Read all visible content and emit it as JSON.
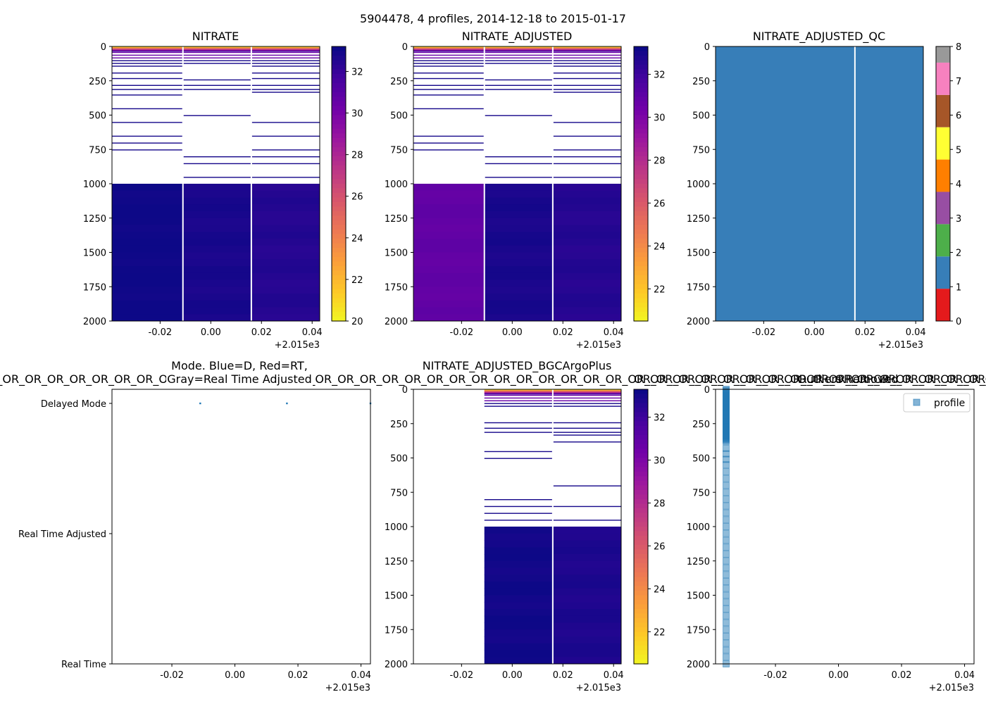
{
  "figure": {
    "suptitle": "5904478, 4 profiles, 2014-12-18 to 2015-01-17",
    "x_offset_label": "+2.015e3",
    "x_ticks": [
      "-0.02",
      "0.00",
      "0.02",
      "0.04"
    ]
  },
  "colors": {
    "plasma": [
      "#0d0887",
      "#46039f",
      "#7201a8",
      "#9c179e",
      "#bd3786",
      "#d8576b",
      "#ed7953",
      "#fb9f3a",
      "#fdca26",
      "#f0f921"
    ],
    "qc": [
      "#e41a1c",
      "#377eb8",
      "#4daf4a",
      "#984ea3",
      "#ff7f00",
      "#ffff33",
      "#a65628",
      "#f781bf",
      "#999999"
    ],
    "point_blue": "#1f77b4",
    "profile_marker": "#1f77b4"
  },
  "chart_data": [
    {
      "id": "nitrate",
      "type": "heatmap",
      "title": "NITRATE",
      "xlim": [
        2014.961,
        2015.043
      ],
      "ylim": [
        2000,
        0
      ],
      "y_ticks": [
        "0",
        "250",
        "500",
        "750",
        "1000",
        "1250",
        "1500",
        "1750",
        "2000"
      ],
      "profile_times": [
        2014.961,
        2014.989,
        2015.016,
        2015.043
      ],
      "deep_values": [
        33.2,
        32.9,
        32.6
      ],
      "shallow_line_depths": [
        [
          40,
          60,
          80,
          100,
          120,
          140,
          190,
          230,
          280,
          310,
          350,
          450,
          550,
          650,
          700,
          750
        ],
        [
          40,
          60,
          80,
          100,
          120,
          240,
          280,
          310,
          500,
          800,
          850,
          950
        ],
        [
          40,
          60,
          80,
          100,
          120,
          140,
          190,
          230,
          280,
          310,
          330,
          550,
          650,
          750,
          800,
          850,
          950
        ]
      ],
      "colorbar": {
        "min": 20,
        "max": 33.2,
        "ticks": [
          "20",
          "22",
          "24",
          "26",
          "28",
          "30",
          "32"
        ]
      }
    },
    {
      "id": "nitrate_adjusted",
      "type": "heatmap",
      "title": "NITRATE_ADJUSTED",
      "xlim": [
        2014.961,
        2015.043
      ],
      "ylim": [
        2000,
        0
      ],
      "y_ticks": [
        "0",
        "250",
        "500",
        "750",
        "1000",
        "1250",
        "1500",
        "1750",
        "2000"
      ],
      "profile_times": [
        2014.961,
        2014.989,
        2015.016,
        2015.043
      ],
      "deep_values": [
        31.0,
        33.0,
        32.7
      ],
      "shallow_line_depths": [
        [
          40,
          60,
          80,
          100,
          120,
          140,
          190,
          230,
          280,
          310,
          350,
          450,
          650,
          700,
          750
        ],
        [
          40,
          60,
          80,
          100,
          120,
          240,
          280,
          310,
          500,
          800,
          850,
          950
        ],
        [
          40,
          60,
          80,
          100,
          120,
          140,
          190,
          230,
          280,
          310,
          330,
          550,
          650,
          750,
          800,
          850,
          950
        ]
      ],
      "colorbar": {
        "min": 20.5,
        "max": 33.3,
        "ticks": [
          "22",
          "24",
          "26",
          "28",
          "30",
          "32"
        ]
      }
    },
    {
      "id": "nitrate_adjusted_qc",
      "type": "heatmap",
      "title": "NITRATE_ADJUSTED_QC",
      "xlim": [
        2014.961,
        2015.043
      ],
      "ylim": [
        2000,
        0
      ],
      "y_ticks": [
        "0",
        "250",
        "500",
        "750",
        "1000",
        "1250",
        "1500",
        "1750",
        "2000"
      ],
      "qc_value": 1,
      "gap_time": 2015.016,
      "colorbar": {
        "min": 0,
        "max": 8,
        "ticks": [
          "0",
          "1",
          "2",
          "3",
          "4",
          "5",
          "6",
          "7",
          "8"
        ]
      }
    },
    {
      "id": "mode",
      "type": "scatter",
      "title_line1": "Mode. Blue=D, Red=RT,",
      "title_line2": "Gray=Real Time Adjusted",
      "title_overlap": "OR_OR_OR_OR_OR_OR_OR_OR_OR_OR_OR_OR_OR_OR_OR_OR_OR_OR_OR_OR_OR_OR_OR_OR_OR_OR_OR_OR_OR_OR_OR_OR_OR_OR_OR_OR_OR_OR_OR_OR_OR_OR_OR_OR_OR_OR_OR_OR_OR_OR_OR_OR_OR_OR_OR_OR_OR_OR_OR_OR",
      "xlim": [
        2014.961,
        2015.043
      ],
      "y_categories": [
        "Delayed Mode",
        "Real Time Adjusted",
        "Real Time"
      ],
      "points": [
        {
          "x": 2014.989,
          "y": "Delayed Mode"
        },
        {
          "x": 2015.0165,
          "y": "Delayed Mode"
        },
        {
          "x": 2015.043,
          "y": "Delayed Mode"
        }
      ]
    },
    {
      "id": "bgcargoplus",
      "type": "heatmap",
      "title": "NITRATE_ADJUSTED_BGCArgoPlus",
      "xlim": [
        2014.961,
        2015.043
      ],
      "ylim": [
        2000,
        0
      ],
      "y_ticks": [
        "0",
        "250",
        "500",
        "750",
        "1000",
        "1250",
        "1500",
        "1750",
        "2000"
      ],
      "profile_times": [
        2014.989,
        2015.016,
        2015.043
      ],
      "deep_values": [
        33.2,
        32.9
      ],
      "shallow_line_depths": [
        [
          40,
          60,
          80,
          100,
          120,
          240,
          280,
          310,
          450,
          500,
          800,
          850,
          900,
          950
        ],
        [
          40,
          60,
          80,
          100,
          120,
          240,
          280,
          310,
          330,
          380,
          700,
          850,
          950
        ]
      ],
      "colorbar": {
        "min": 20.5,
        "max": 33.3,
        "ticks": [
          "22",
          "24",
          "26",
          "28",
          "30",
          "32"
        ]
      }
    },
    {
      "id": "outliers",
      "type": "scatter",
      "title": "Outliers Removed",
      "title_overlap": "OR_OR_OR_OR_OR_OR_OR_OR_OR_OR_OR_OR_OR_OR_OR_OR_OR_OR_OR_OR_OR_OR_OR_OR_OR_OR_OR_OR_OR_OR_OR_OR_OR_OR_OR_OR_OR_OR_OR_OR_OR_OR_OR_OR_OR_OR_OR_OR_OR_OR_OR_OR_OR_OR_OR_OR_OR_OR_OR_OR",
      "xlim": [
        2014.961,
        2015.043
      ],
      "ylim": [
        2000,
        0
      ],
      "y_ticks": [
        "0",
        "250",
        "500",
        "750",
        "1000",
        "1250",
        "1500",
        "1750",
        "2000"
      ],
      "legend": "profile",
      "legend_loc": "upper right",
      "profile_x": 2014.961,
      "dense_depths": [
        0,
        10,
        20,
        30,
        40,
        50,
        60,
        70,
        80,
        90,
        100,
        110,
        120,
        130,
        140,
        150,
        160,
        170,
        180,
        190,
        200,
        210,
        220,
        230,
        240,
        250,
        260,
        270,
        280,
        290,
        300,
        310,
        320,
        330,
        340,
        350,
        360,
        370,
        380
      ],
      "sparse_depths": [
        430,
        470,
        510,
        550,
        600,
        650,
        700,
        750,
        800,
        850,
        900,
        950,
        1000,
        1050,
        1100,
        1150,
        1200,
        1250,
        1300,
        1350,
        1400,
        1450,
        1500,
        1550,
        1600,
        1650,
        1700,
        1750,
        1800,
        1850,
        1900,
        1950,
        2000
      ]
    }
  ]
}
